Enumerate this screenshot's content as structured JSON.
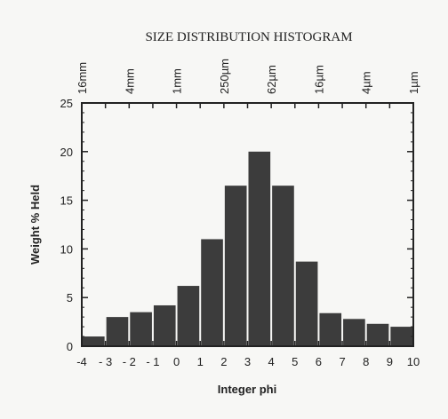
{
  "chart_data": {
    "type": "bar",
    "title": "SIZE DISTRIBUTION HISTOGRAM",
    "xlabel": "Integer phi",
    "ylabel": "Weight % Held",
    "ylim": [
      0,
      25
    ],
    "yticks": [
      "0",
      "5",
      "10",
      "15",
      "20",
      "25"
    ],
    "xticks": [
      "-4",
      "- 3",
      "- 2",
      "- 1",
      "0",
      "1",
      "2",
      "3",
      "4",
      "5",
      "6",
      "7",
      "8",
      "9",
      "10"
    ],
    "top_labels": [
      "16mm",
      "4mm",
      "1mm",
      "250µm",
      "62µm",
      "16µm",
      "4µm",
      "1µm"
    ],
    "categories": [
      -4,
      -3,
      -2,
      -1,
      0,
      1,
      2,
      3,
      4,
      5,
      6,
      7,
      8,
      9
    ],
    "values": [
      1.0,
      3.0,
      3.5,
      4.2,
      6.2,
      11.0,
      16.5,
      20.0,
      16.5,
      8.7,
      3.4,
      2.8,
      2.3,
      2.0
    ],
    "bar_color": "#3c3c3c",
    "grid": false
  }
}
